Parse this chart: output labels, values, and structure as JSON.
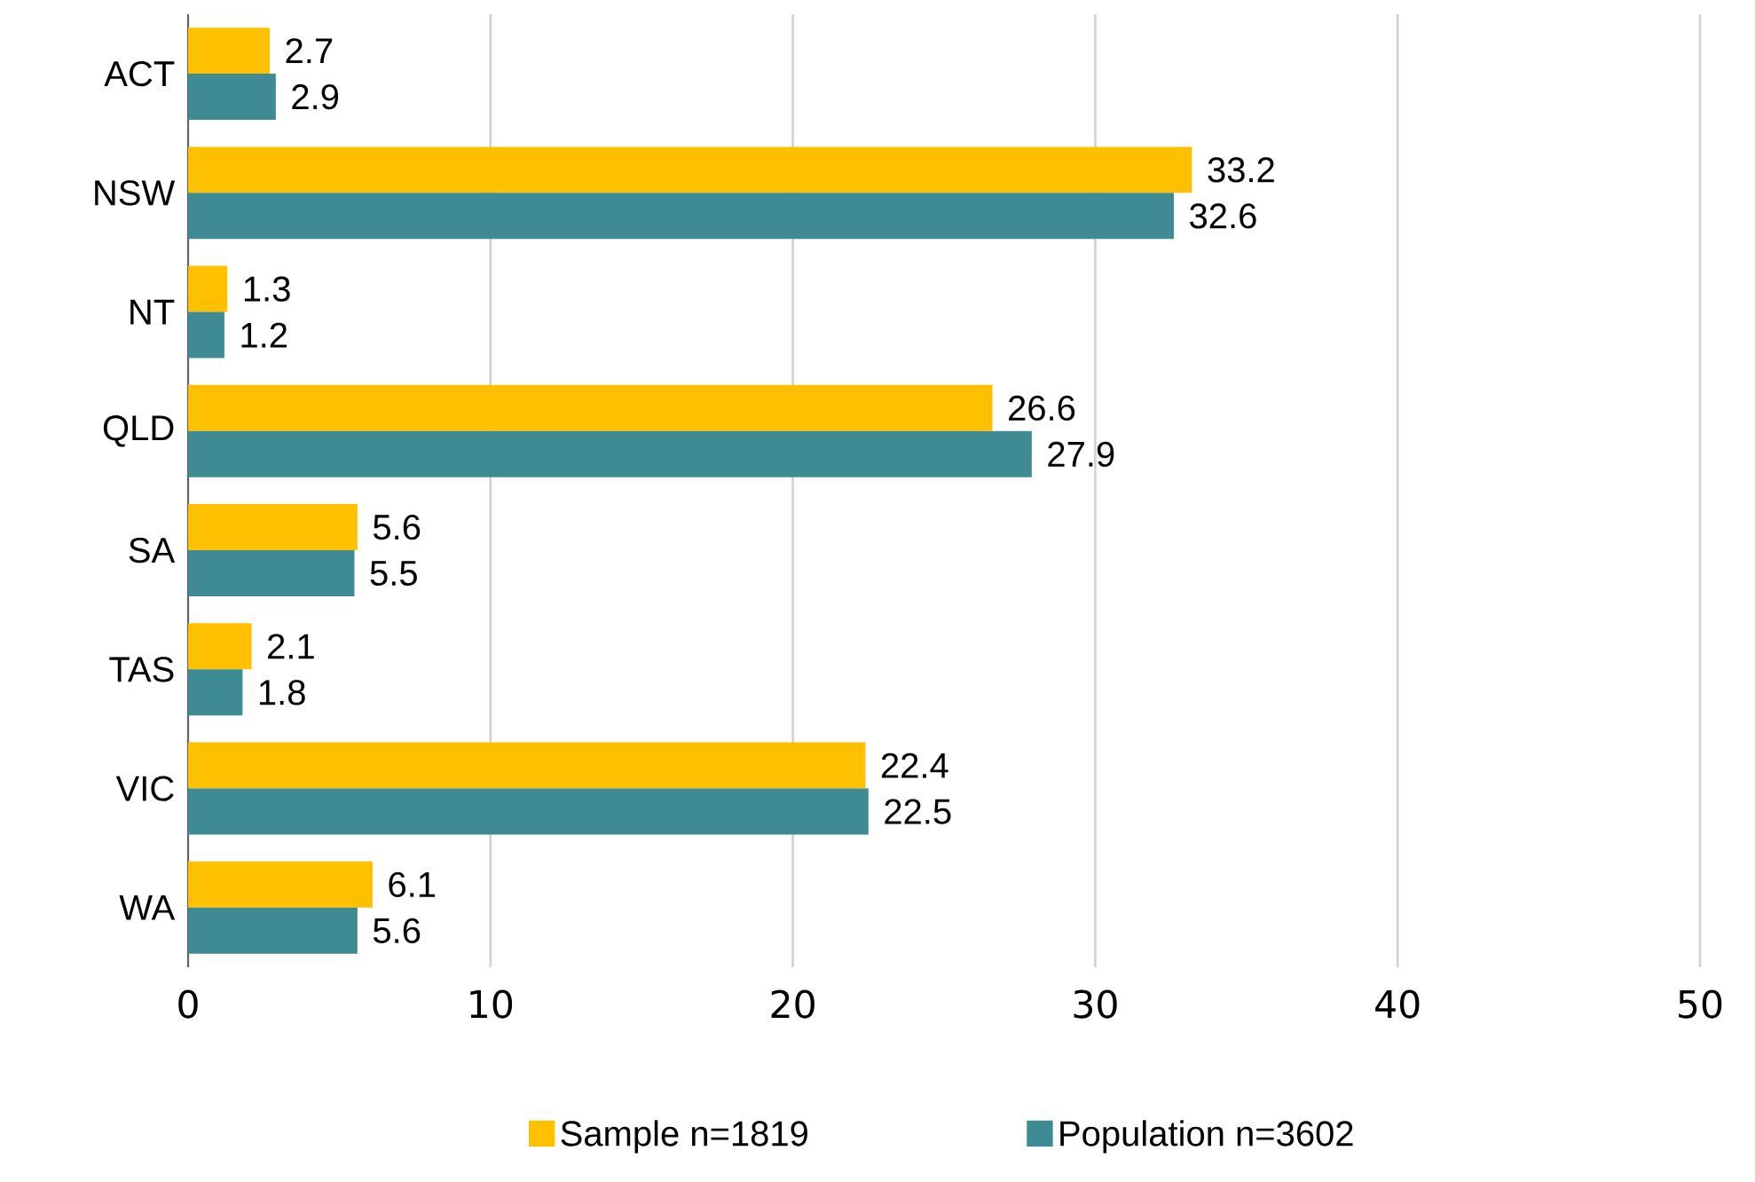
{
  "chart_data": {
    "type": "bar",
    "orientation": "horizontal",
    "categories": [
      "ACT",
      "NSW",
      "NT",
      "QLD",
      "SA",
      "TAS",
      "VIC",
      "WA"
    ],
    "series": [
      {
        "name": "Sample n=1819",
        "color": "#ffc000",
        "values": [
          2.7,
          33.2,
          1.3,
          26.6,
          5.6,
          2.1,
          22.4,
          6.1
        ]
      },
      {
        "name": "Population n=3602",
        "color": "#3e8b93",
        "values": [
          2.9,
          32.6,
          1.2,
          27.9,
          5.5,
          1.8,
          22.5,
          5.6
        ]
      }
    ],
    "xlim": [
      0,
      50
    ],
    "xticks": [
      0,
      10,
      20,
      30,
      40,
      50
    ],
    "grid": "x",
    "legend": "bottom",
    "data_labels": true
  }
}
